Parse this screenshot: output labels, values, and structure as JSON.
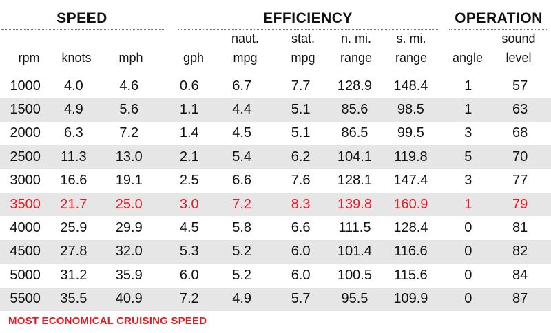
{
  "chart_data": {
    "type": "table",
    "groups": [
      "SPEED",
      "EFFICIENCY",
      "OPERATION"
    ],
    "columns": [
      {
        "top": "",
        "bottom": "rpm"
      },
      {
        "top": "",
        "bottom": "knots"
      },
      {
        "top": "",
        "bottom": "mph"
      },
      {
        "top": "",
        "bottom": "gph"
      },
      {
        "top": "naut.",
        "bottom": "mpg"
      },
      {
        "top": "stat.",
        "bottom": "mpg"
      },
      {
        "top": "n. mi.",
        "bottom": "range"
      },
      {
        "top": "s. mi.",
        "bottom": "range"
      },
      {
        "top": "",
        "bottom": "angle"
      },
      {
        "top": "sound",
        "bottom": "level"
      }
    ],
    "rows": [
      [
        "1000",
        "4.0",
        "4.6",
        "0.6",
        "6.7",
        "7.7",
        "128.9",
        "148.4",
        "1",
        "57"
      ],
      [
        "1500",
        "4.9",
        "5.6",
        "1.1",
        "4.4",
        "5.1",
        "85.6",
        "98.5",
        "1",
        "63"
      ],
      [
        "2000",
        "6.3",
        "7.2",
        "1.4",
        "4.5",
        "5.1",
        "86.5",
        "99.5",
        "3",
        "68"
      ],
      [
        "2500",
        "11.3",
        "13.0",
        "2.1",
        "5.4",
        "6.2",
        "104.1",
        "119.8",
        "5",
        "70"
      ],
      [
        "3000",
        "16.6",
        "19.1",
        "2.5",
        "6.6",
        "7.6",
        "128.1",
        "147.4",
        "3",
        "77"
      ],
      [
        "3500",
        "21.7",
        "25.0",
        "3.0",
        "7.2",
        "8.3",
        "139.8",
        "160.9",
        "1",
        "79"
      ],
      [
        "4000",
        "25.9",
        "29.9",
        "4.5",
        "5.8",
        "6.6",
        "111.5",
        "128.4",
        "0",
        "81"
      ],
      [
        "4500",
        "27.8",
        "32.0",
        "5.3",
        "5.2",
        "6.0",
        "101.4",
        "116.6",
        "0",
        "82"
      ],
      [
        "5000",
        "31.2",
        "35.9",
        "6.0",
        "5.2",
        "6.0",
        "100.5",
        "115.6",
        "0",
        "84"
      ],
      [
        "5500",
        "35.5",
        "40.9",
        "7.2",
        "4.9",
        "5.7",
        "95.5",
        "109.9",
        "0",
        "87"
      ]
    ],
    "highlight_row": 5,
    "highlight_color": "#e31b23",
    "alt_row_color": "#e6e6e6",
    "footnote": "MOST ECONOMICAL CRUISING SPEED"
  }
}
